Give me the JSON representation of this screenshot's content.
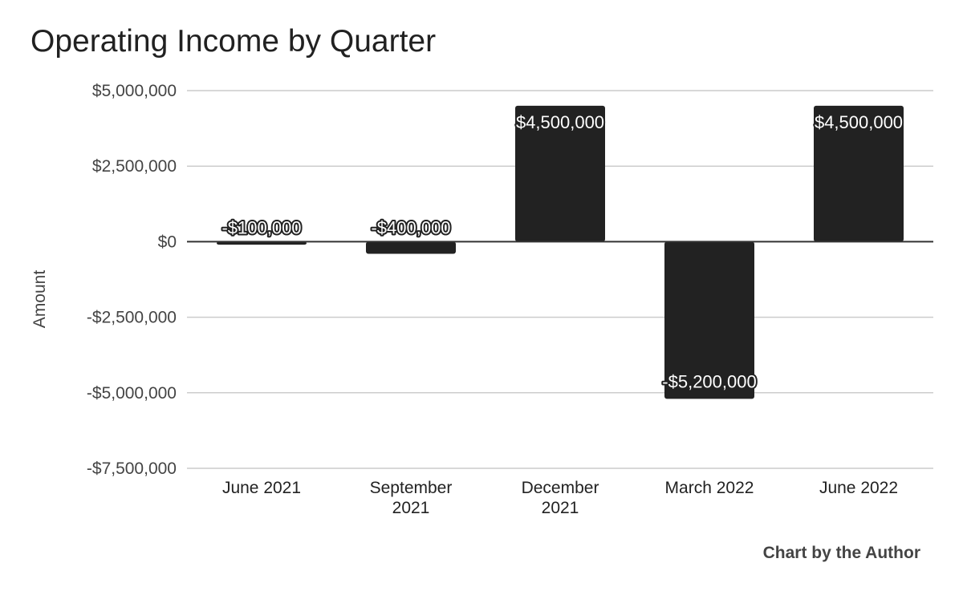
{
  "chart_data": {
    "type": "bar",
    "title": "Operating Income by Quarter",
    "ylabel": "Amount",
    "xlabel": "",
    "categories": [
      [
        "June 2021"
      ],
      [
        "September",
        "2021"
      ],
      [
        "December",
        "2021"
      ],
      [
        "March 2022"
      ],
      [
        "June 2022"
      ]
    ],
    "values": [
      -100000,
      -400000,
      4500000,
      -5200000,
      4500000
    ],
    "data_labels": [
      "-$100,000",
      "-$400,000",
      "$4,500,000",
      "-$5,200,000",
      "$4,500,000"
    ],
    "y_ticks": [
      5000000,
      2500000,
      0,
      -2500000,
      -5000000,
      -7500000
    ],
    "y_tick_labels": [
      "$5,000,000",
      "$2,500,000",
      "$0",
      "-$2,500,000",
      "-$5,000,000",
      "-$7,500,000"
    ],
    "ylim": [
      -7500000,
      5000000
    ],
    "grid": true,
    "legend": "none",
    "bar_color": "#222222",
    "gridline_color": "#cccccc",
    "credit": "Chart by the Author"
  }
}
